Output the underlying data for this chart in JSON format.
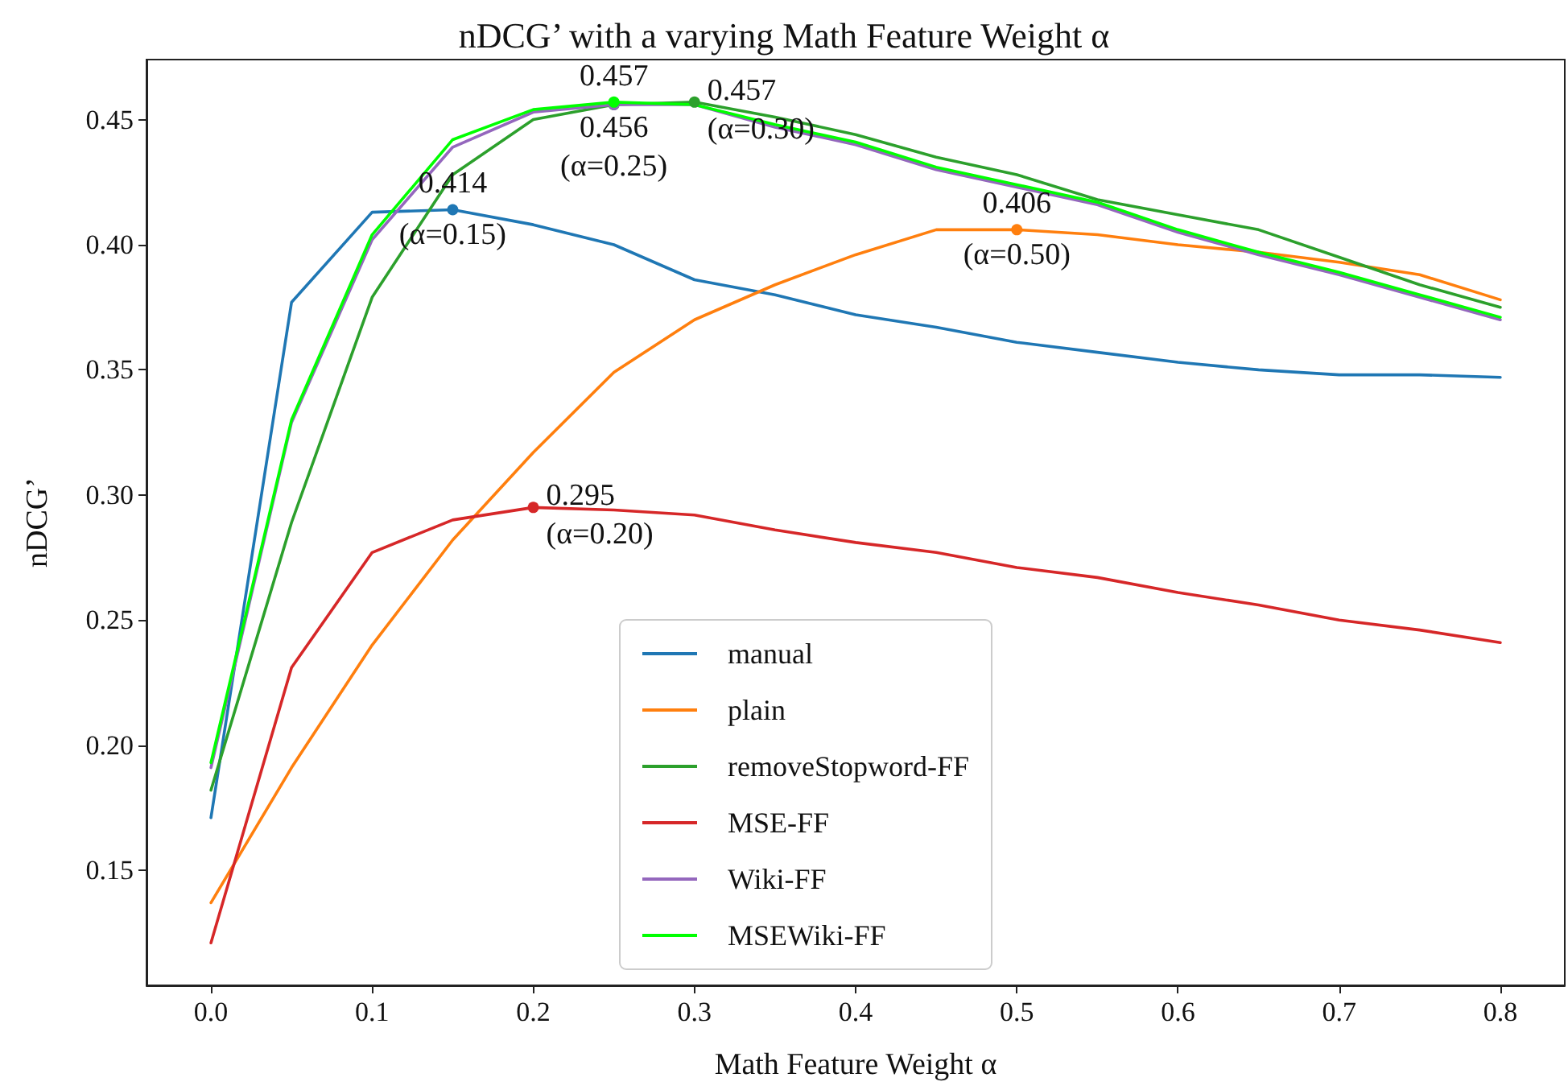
{
  "chart_data": {
    "type": "line",
    "title": "nDCG’ with a varying Math Feature Weight α",
    "xlabel": "Math Feature Weight α",
    "ylabel": "nDCG’",
    "x": [
      0,
      0.05,
      0.1,
      0.15,
      0.2,
      0.25,
      0.3,
      0.35,
      0.4,
      0.45,
      0.5,
      0.55,
      0.6,
      0.65,
      0.7,
      0.75,
      0.8
    ],
    "series": [
      {
        "name": "manual",
        "color": "#1f77b4",
        "values": [
          0.171,
          0.377,
          0.413,
          0.414,
          0.408,
          0.4,
          0.386,
          0.38,
          0.372,
          0.367,
          0.361,
          0.357,
          0.353,
          0.35,
          0.348,
          0.348,
          0.347
        ]
      },
      {
        "name": "plain",
        "color": "#ff7f0e",
        "values": [
          0.137,
          0.191,
          0.24,
          0.282,
          0.317,
          0.349,
          0.37,
          0.384,
          0.396,
          0.406,
          0.406,
          0.404,
          0.4,
          0.397,
          0.393,
          0.388,
          0.378
        ]
      },
      {
        "name": "removeStopword-FF",
        "color": "#2ca02c",
        "values": [
          0.182,
          0.289,
          0.379,
          0.428,
          0.45,
          0.456,
          0.457,
          0.451,
          0.444,
          0.435,
          0.428,
          0.418,
          0.412,
          0.406,
          0.395,
          0.384,
          0.375
        ]
      },
      {
        "name": "MSE-FF",
        "color": "#d62728",
        "values": [
          0.121,
          0.231,
          0.277,
          0.29,
          0.295,
          0.294,
          0.292,
          0.286,
          0.281,
          0.277,
          0.271,
          0.267,
          0.261,
          0.256,
          0.25,
          0.246,
          0.241
        ]
      },
      {
        "name": "Wiki-FF",
        "color": "#9467bd",
        "values": [
          0.191,
          0.329,
          0.402,
          0.439,
          0.453,
          0.456,
          0.456,
          0.447,
          0.44,
          0.43,
          0.423,
          0.416,
          0.405,
          0.396,
          0.388,
          0.379,
          0.37
        ]
      },
      {
        "name": "MSEWiki-FF",
        "color": "#00ff00",
        "values": [
          0.193,
          0.33,
          0.404,
          0.442,
          0.454,
          0.457,
          0.456,
          0.448,
          0.441,
          0.431,
          0.424,
          0.417,
          0.406,
          0.397,
          0.389,
          0.38,
          0.371
        ]
      }
    ],
    "xlim": [
      -0.04,
      0.84
    ],
    "xticks": [
      {
        "value": 0,
        "label": "0.0"
      },
      {
        "value": 0.1,
        "label": "0.1"
      },
      {
        "value": 0.2,
        "label": "0.2"
      },
      {
        "value": 0.3,
        "label": "0.3"
      },
      {
        "value": 0.4,
        "label": "0.4"
      },
      {
        "value": 0.5,
        "label": "0.5"
      },
      {
        "value": 0.6,
        "label": "0.6"
      },
      {
        "value": 0.7,
        "label": "0.7"
      },
      {
        "value": 0.8,
        "label": "0.8"
      }
    ],
    "ylim": [
      0.104,
      0.474
    ],
    "yticks": [
      0.15,
      {
        "value": 0.2,
        "label": "0.20"
      },
      0.25,
      {
        "value": 0.3,
        "label": "0.30"
      },
      0.35,
      {
        "value": 0.4,
        "label": "0.40"
      },
      0.45
    ],
    "annotations": [
      {
        "text": "0.414",
        "x": 0.15,
        "y": 0.414
      },
      {
        "text": "(α=0.15)",
        "x": 0.15,
        "y": 0.414
      },
      {
        "text": "0.457",
        "x": 0.25,
        "y": 0.457
      },
      {
        "text": "0.456",
        "x": 0.25,
        "y": 0.456
      },
      {
        "text": "(α=0.25)",
        "x": 0.25,
        "y": 0.456
      },
      {
        "text": "0.457",
        "x": 0.3,
        "y": 0.457
      },
      {
        "text": "(α=0.30)",
        "x": 0.3,
        "y": 0.457
      },
      {
        "text": "0.295",
        "x": 0.2,
        "y": 0.295
      },
      {
        "text": "(α=0.20)",
        "x": 0.2,
        "y": 0.295
      },
      {
        "text": "0.406",
        "x": 0.5,
        "y": 0.406
      },
      {
        "text": "(α=0.50)",
        "x": 0.5,
        "y": 0.406
      }
    ],
    "legend": "bottom",
    "grid": false,
    "marker": "none",
    "line_style": "solid"
  }
}
